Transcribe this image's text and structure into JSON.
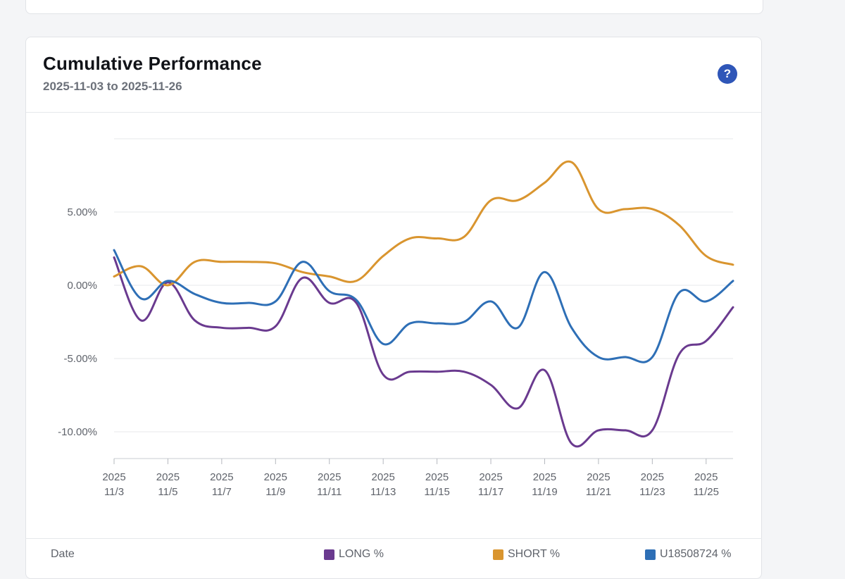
{
  "header": {
    "title": "Cumulative Performance",
    "subtitle": "2025-11-03 to 2025-11-26",
    "help_label": "?"
  },
  "table": {
    "date_label": "Date"
  },
  "colors": {
    "long": "#6a3a8f",
    "short": "#d9952f",
    "account": "#2e6fb6"
  },
  "chart_data": {
    "type": "line",
    "x": [
      "2025-11-03",
      "2025-11-04",
      "2025-11-05",
      "2025-11-06",
      "2025-11-07",
      "2025-11-08",
      "2025-11-09",
      "2025-11-10",
      "2025-11-11",
      "2025-11-12",
      "2025-11-13",
      "2025-11-14",
      "2025-11-15",
      "2025-11-16",
      "2025-11-17",
      "2025-11-18",
      "2025-11-19",
      "2025-11-20",
      "2025-11-21",
      "2025-11-22",
      "2025-11-23",
      "2025-11-24",
      "2025-11-25",
      "2025-11-26"
    ],
    "x_tick_labels": [
      {
        "year": "2025",
        "day": "11/3"
      },
      {
        "year": "2025",
        "day": "11/5"
      },
      {
        "year": "2025",
        "day": "11/7"
      },
      {
        "year": "2025",
        "day": "11/9"
      },
      {
        "year": "2025",
        "day": "11/11"
      },
      {
        "year": "2025",
        "day": "11/13"
      },
      {
        "year": "2025",
        "day": "11/15"
      },
      {
        "year": "2025",
        "day": "11/17"
      },
      {
        "year": "2025",
        "day": "11/19"
      },
      {
        "year": "2025",
        "day": "11/21"
      },
      {
        "year": "2025",
        "day": "11/23"
      },
      {
        "year": "2025",
        "day": "11/25"
      }
    ],
    "y_ticks": [
      5,
      0,
      -5,
      -10
    ],
    "y_tick_labels": [
      "5.00%",
      "0.00%",
      "-5.00%",
      "-10.00%"
    ],
    "ylim": [
      -12,
      10
    ],
    "grid": true,
    "legend_position": "bottom",
    "series": [
      {
        "name": "LONG %",
        "color": "#6a3a8f",
        "values": [
          1.9,
          -2.4,
          0.2,
          -2.4,
          -2.9,
          -2.9,
          -2.8,
          0.5,
          -1.2,
          -1.2,
          -6.1,
          -5.9,
          -5.9,
          -5.9,
          -6.8,
          -8.4,
          -5.8,
          -10.8,
          -9.9,
          -9.9,
          -9.9,
          -4.7,
          -3.8,
          -1.5
        ]
      },
      {
        "name": "SHORT %",
        "color": "#d9952f",
        "values": [
          0.6,
          1.3,
          0.0,
          1.6,
          1.6,
          1.6,
          1.5,
          0.9,
          0.6,
          0.3,
          2.0,
          3.2,
          3.2,
          3.3,
          5.8,
          5.8,
          7.0,
          8.4,
          5.2,
          5.2,
          5.2,
          4.1,
          2.0,
          1.4
        ]
      },
      {
        "name": "U18508724 %",
        "color": "#2e6fb6",
        "values": [
          2.4,
          -0.9,
          0.3,
          -0.6,
          -1.2,
          -1.2,
          -1.1,
          1.6,
          -0.4,
          -1.0,
          -4.0,
          -2.6,
          -2.6,
          -2.5,
          -1.1,
          -2.9,
          0.9,
          -2.9,
          -4.9,
          -4.9,
          -4.9,
          -0.5,
          -1.1,
          0.3
        ]
      }
    ]
  }
}
